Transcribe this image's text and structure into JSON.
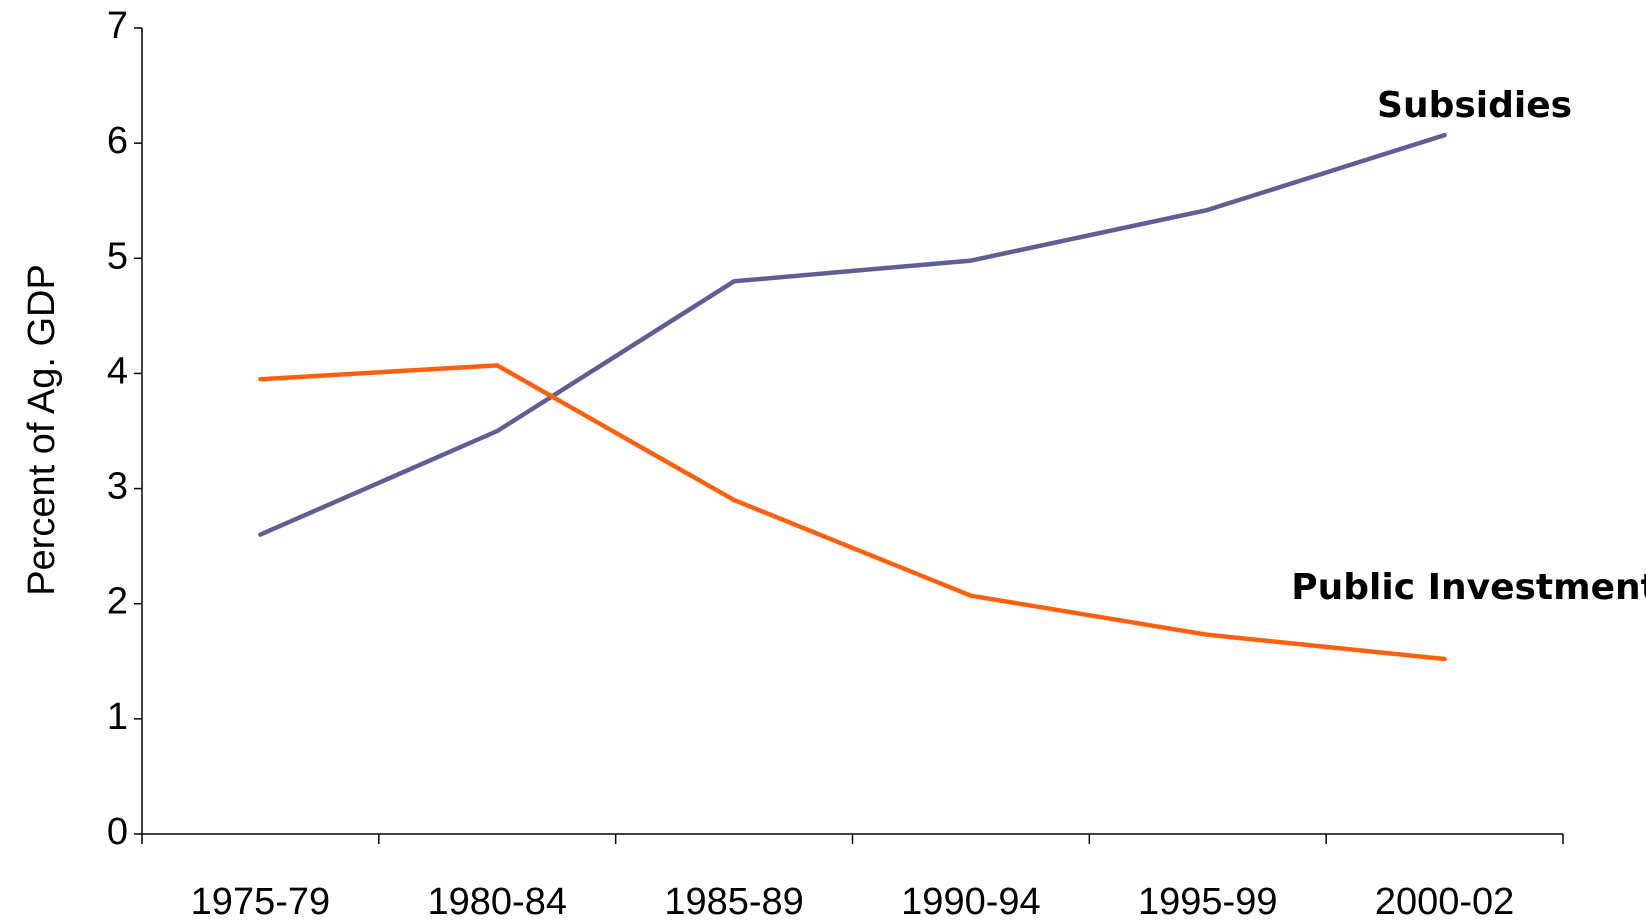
{
  "chart_data": {
    "type": "line",
    "y_label": "Percent of Ag. GDP",
    "categories": [
      "1975-79",
      "1980-84",
      "1985-89",
      "1990-94",
      "1995-99",
      "2000-02"
    ],
    "series": [
      {
        "name": "Subsidies",
        "color": "#5f5f96",
        "values": [
          2.6,
          3.5,
          4.8,
          4.98,
          5.42,
          6.07
        ]
      },
      {
        "name": "Public Investment",
        "color": "#ff6010",
        "values": [
          3.95,
          4.07,
          2.9,
          2.07,
          1.73,
          1.52
        ]
      }
    ],
    "ylim": [
      0,
      7
    ],
    "yticks": [
      0,
      1,
      2,
      3,
      4,
      5,
      6,
      7
    ],
    "grid": false
  }
}
